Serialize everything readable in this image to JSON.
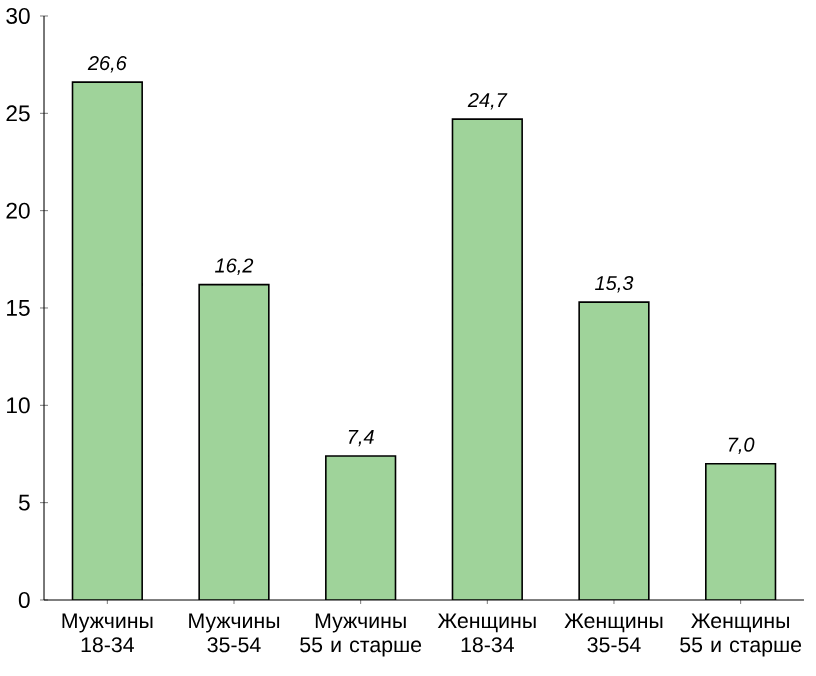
{
  "chart_data": {
    "type": "bar",
    "categories": [
      "Мужчины 18-34",
      "Мужчины 35-54",
      "Мужчины 55 и старше",
      "Женщины 18-34",
      "Женщины 35-54",
      "Женщины 55 и старше"
    ],
    "values": [
      26.6,
      16.2,
      7.4,
      24.7,
      15.3,
      7.0
    ],
    "value_labels": [
      "26,6",
      "16,2",
      "7,4",
      "24,7",
      "15,3",
      "7,0"
    ],
    "color": "#9fd39a",
    "ylim": [
      0,
      30
    ],
    "yticks": [
      0,
      5,
      10,
      15,
      20,
      25,
      30
    ],
    "grid": false
  }
}
